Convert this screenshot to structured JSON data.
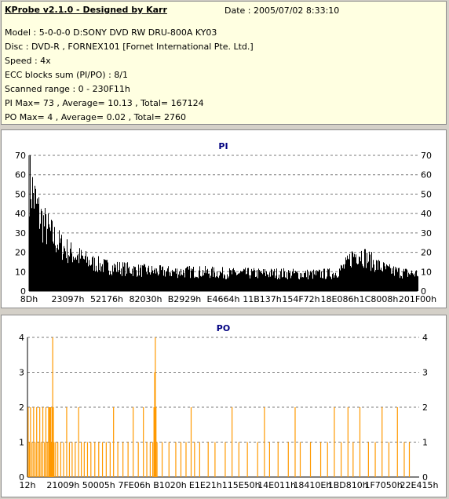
{
  "header": {
    "title": "KProbe v2.1.0 - Designed by Karr",
    "date": "Date : 2005/07/02 8:33:10",
    "lines": [
      "Model : 5-0-0-0 D:SONY    DVD RW DRU-800A  KY03",
      "Disc : DVD-R , FORNEX101 [Fornet International Pte. Ltd.]",
      "Speed : 4x",
      "ECC blocks sum (PI/PO) : 8/1",
      "Scanned range : 0 - 230F11h",
      "PI Max= 73 , Average= 10.13 , Total= 167124",
      "PO Max= 4 , Average= 0.02 , Total= 2760"
    ]
  },
  "chart_data": [
    {
      "type": "area",
      "title": "PI",
      "color": "#000000",
      "ylim": [
        0,
        70
      ],
      "yticks": [
        0,
        10,
        20,
        30,
        40,
        50,
        60,
        70
      ],
      "xlim": [
        0,
        2297617
      ],
      "xtick_labels": [
        "8Dh",
        "23097h",
        "52176h",
        "82030h",
        "B2929h",
        "E4664h",
        "11B137h",
        "154F72h",
        "18E086h",
        "1C8008h",
        "201F00h"
      ],
      "envelope": {
        "x": [
          0,
          9000,
          18000,
          36000,
          60000,
          90000,
          130000,
          180000,
          240000,
          300000,
          360000,
          420000,
          480000,
          560000,
          640000,
          720000,
          800000,
          900000,
          1000000,
          1100000,
          1200000,
          1300000,
          1400000,
          1500000,
          1600000,
          1700000,
          1800000,
          1820000,
          1850000,
          1880000,
          1910000,
          1950000,
          2000000,
          2060000,
          2120000,
          2180000,
          2240000,
          2297617
        ],
        "y": [
          70,
          67,
          62,
          55,
          47,
          41,
          35,
          29,
          24,
          21,
          18,
          16,
          15,
          14,
          13,
          12.5,
          12,
          12,
          12,
          11.5,
          11,
          11,
          11,
          11,
          10.5,
          10.5,
          11,
          12,
          14,
          17,
          22,
          24,
          20,
          16,
          13,
          12,
          11,
          11
        ]
      },
      "grid": true
    },
    {
      "type": "bar",
      "title": "PO",
      "color": "#ff9900",
      "ylim": [
        0,
        4
      ],
      "yticks": [
        0,
        1,
        2,
        3,
        4
      ],
      "xlim": [
        0,
        2297617
      ],
      "xtick_labels": [
        "12h",
        "21009h",
        "50005h",
        "7FE06h",
        "B1020h",
        "E1E21h",
        "115E50h",
        "14E011h",
        "18410Eh",
        "1BD810h",
        "1F7050h",
        "22E415h"
      ],
      "points": [
        [
          4000,
          2
        ],
        [
          11000,
          1
        ],
        [
          18000,
          2
        ],
        [
          27000,
          1
        ],
        [
          36000,
          2
        ],
        [
          45000,
          1
        ],
        [
          54000,
          2
        ],
        [
          63000,
          1
        ],
        [
          72000,
          2
        ],
        [
          80000,
          1
        ],
        [
          90000,
          2
        ],
        [
          100000,
          1
        ],
        [
          108000,
          2
        ],
        [
          116000,
          1
        ],
        [
          124000,
          2
        ],
        [
          128000,
          2
        ],
        [
          132000,
          2
        ],
        [
          136000,
          2
        ],
        [
          140000,
          1
        ],
        [
          144000,
          2
        ],
        [
          148000,
          4
        ],
        [
          152000,
          2
        ],
        [
          156000,
          1
        ],
        [
          165000,
          1
        ],
        [
          178000,
          1
        ],
        [
          195000,
          1
        ],
        [
          212000,
          1
        ],
        [
          230000,
          2
        ],
        [
          246000,
          1
        ],
        [
          262000,
          1
        ],
        [
          280000,
          1
        ],
        [
          300000,
          2
        ],
        [
          316000,
          1
        ],
        [
          333000,
          1
        ],
        [
          352000,
          1
        ],
        [
          372000,
          1
        ],
        [
          395000,
          1
        ],
        [
          418000,
          1
        ],
        [
          440000,
          1
        ],
        [
          462000,
          1
        ],
        [
          485000,
          1
        ],
        [
          505000,
          2
        ],
        [
          530000,
          1
        ],
        [
          560000,
          1
        ],
        [
          590000,
          1
        ],
        [
          620000,
          2
        ],
        [
          650000,
          1
        ],
        [
          680000,
          2
        ],
        [
          700000,
          1
        ],
        [
          720000,
          1
        ],
        [
          735000,
          1
        ],
        [
          742000,
          2
        ],
        [
          746000,
          3
        ],
        [
          750000,
          4
        ],
        [
          754000,
          2
        ],
        [
          760000,
          1
        ],
        [
          790000,
          1
        ],
        [
          830000,
          1
        ],
        [
          870000,
          1
        ],
        [
          900000,
          1
        ],
        [
          930000,
          1
        ],
        [
          960000,
          2
        ],
        [
          980000,
          1
        ],
        [
          1010000,
          1
        ],
        [
          1060000,
          1
        ],
        [
          1100000,
          1
        ],
        [
          1160000,
          1
        ],
        [
          1200000,
          2
        ],
        [
          1240000,
          1
        ],
        [
          1290000,
          1
        ],
        [
          1350000,
          1
        ],
        [
          1390000,
          2
        ],
        [
          1420000,
          1
        ],
        [
          1470000,
          1
        ],
        [
          1530000,
          1
        ],
        [
          1570000,
          2
        ],
        [
          1600000,
          1
        ],
        [
          1660000,
          1
        ],
        [
          1720000,
          1
        ],
        [
          1760000,
          1
        ],
        [
          1800000,
          2
        ],
        [
          1840000,
          1
        ],
        [
          1880000,
          2
        ],
        [
          1910000,
          1
        ],
        [
          1950000,
          2
        ],
        [
          2000000,
          1
        ],
        [
          2040000,
          1
        ],
        [
          2080000,
          2
        ],
        [
          2120000,
          1
        ],
        [
          2170000,
          2
        ],
        [
          2210000,
          1
        ],
        [
          2240000,
          1
        ]
      ],
      "grid": true
    }
  ]
}
